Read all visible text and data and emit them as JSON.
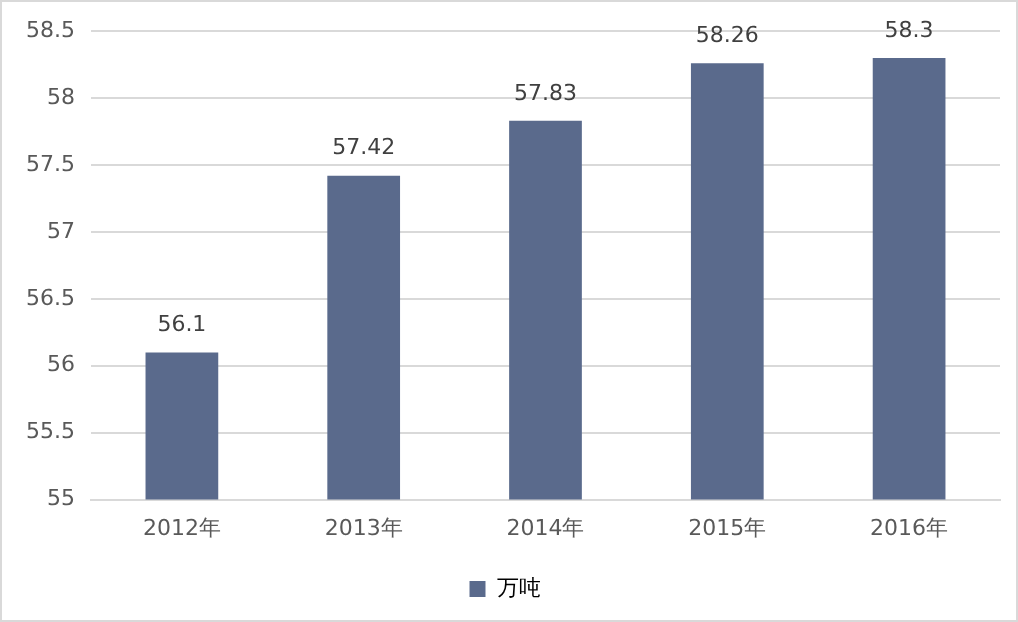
{
  "chart_data": {
    "type": "bar",
    "categories": [
      "2012年",
      "2013年",
      "2014年",
      "2015年",
      "2016年"
    ],
    "series": [
      {
        "name": "万吨",
        "color": "#5a6a8c",
        "values": [
          56.1,
          57.42,
          57.83,
          58.26,
          58.3
        ]
      }
    ],
    "ylim": [
      55,
      58.5
    ],
    "yticks": [
      55,
      55.5,
      56,
      56.5,
      57,
      57.5,
      58,
      58.5
    ],
    "grid": "y",
    "legend": "bottom",
    "data_labels": true
  }
}
